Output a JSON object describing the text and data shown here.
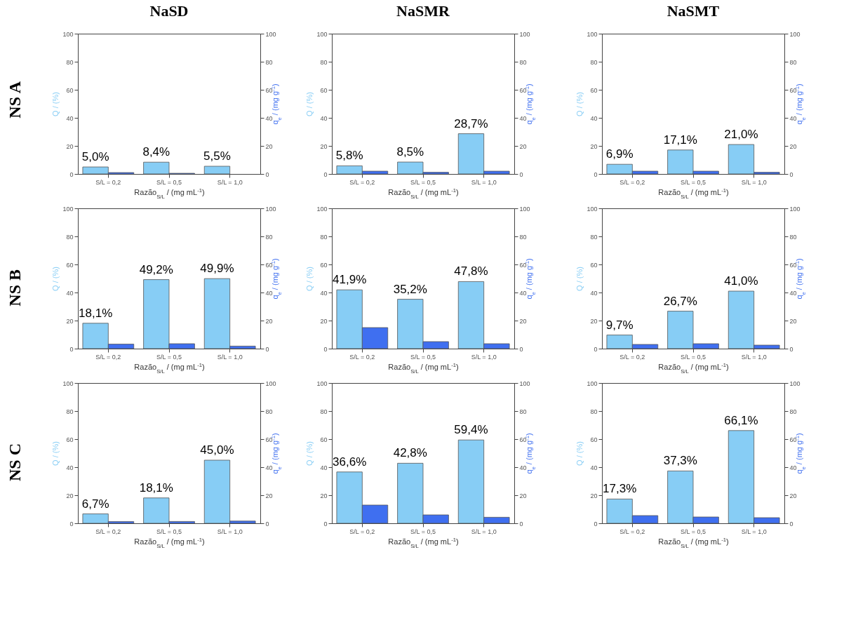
{
  "chart_data": [
    {
      "type": "bar",
      "title": "NaSD",
      "annotations": [
        "NS A"
      ],
      "categories": [
        "S/L = 0,2",
        "S/L = 0,5",
        "S/L = 1,0"
      ],
      "xlabel": "Razão$_{S/L}$ / (mg mL$^{-1}$)",
      "ylabel": "Q / (%)",
      "y2label": "q$_{e}$ / (mg g$^{-1}$)",
      "ylim": [
        0,
        100
      ],
      "yticks": [
        0,
        20,
        40,
        60,
        80,
        100
      ],
      "y2lim": [
        0,
        100
      ],
      "y2ticks": [
        0,
        20,
        40,
        60,
        80,
        100
      ],
      "series": [
        {
          "color": "#87cdf5",
          "values": [
            5.0,
            8.4,
            5.5
          ],
          "value_labels": [
            "5,0%",
            "8,4%",
            "5,5%"
          ]
        },
        {
          "color": "#3f6ff0",
          "axis": "y2",
          "values": [
            1.0,
            0.5,
            null
          ]
        }
      ]
    },
    {
      "type": "bar",
      "title": "NaSMR",
      "categories": [
        "S/L = 0,2",
        "S/L = 0,5",
        "S/L = 1,0"
      ],
      "xlabel": "Razão$_{S/L}$ / (mg mL$^{-1}$)",
      "ylabel": "Q / (%)",
      "y2label": "q$_{e}$ / (mg g$^{-1}$)",
      "ylim": [
        0,
        100
      ],
      "yticks": [
        0,
        20,
        40,
        60,
        80,
        100
      ],
      "y2lim": [
        0,
        100
      ],
      "y2ticks": [
        0,
        20,
        40,
        60,
        80,
        100
      ],
      "series": [
        {
          "color": "#87cdf5",
          "values": [
            5.8,
            8.5,
            28.7
          ],
          "value_labels": [
            "5,8%",
            "8,5%",
            "28,7%"
          ]
        },
        {
          "color": "#3f6ff0",
          "axis": "y2",
          "values": [
            2.0,
            1.2,
            2.0
          ]
        }
      ]
    },
    {
      "type": "bar",
      "title": "NaSMT",
      "categories": [
        "S/L = 0,2",
        "S/L = 0,5",
        "S/L = 1,0"
      ],
      "xlabel": "Razão$_{S/L}$ / (mg mL$^{-1}$)",
      "ylabel": "Q / (%)",
      "y2label": "q$_{e}$ / (mg g$^{-1}$)",
      "ylim": [
        0,
        100
      ],
      "yticks": [
        0,
        20,
        40,
        60,
        80,
        100
      ],
      "y2lim": [
        0,
        100
      ],
      "y2ticks": [
        0,
        20,
        40,
        60,
        80,
        100
      ],
      "series": [
        {
          "color": "#87cdf5",
          "values": [
            6.9,
            17.1,
            21.0
          ],
          "value_labels": [
            "6,9%",
            "17,1%",
            "21,0%"
          ]
        },
        {
          "color": "#3f6ff0",
          "axis": "y2",
          "values": [
            2.0,
            2.0,
            1.2
          ]
        }
      ]
    },
    {
      "type": "bar",
      "annotations": [
        "NS B"
      ],
      "categories": [
        "S/L = 0,2",
        "S/L = 0,5",
        "S/L = 1,0"
      ],
      "xlabel": "Razão$_{S/L}$ / (mg mL$^{-1}$)",
      "ylabel": "Q / (%)",
      "y2label": "q$_{e}$ / (mg g$^{-1}$)",
      "ylim": [
        0,
        100
      ],
      "yticks": [
        0,
        20,
        40,
        60,
        80,
        100
      ],
      "y2lim": [
        0,
        100
      ],
      "y2ticks": [
        0,
        20,
        40,
        60,
        80,
        100
      ],
      "series": [
        {
          "color": "#87cdf5",
          "values": [
            18.1,
            49.2,
            49.9
          ],
          "value_labels": [
            "18,1%",
            "49,2%",
            "49,9%"
          ]
        },
        {
          "color": "#3f6ff0",
          "axis": "y2",
          "values": [
            3.2,
            3.5,
            1.8
          ]
        }
      ]
    },
    {
      "type": "bar",
      "categories": [
        "S/L = 0,2",
        "S/L = 0,5",
        "S/L = 1,0"
      ],
      "xlabel": "Razão$_{S/L}$ / (mg mL$^{-1}$)",
      "ylabel": "Q / (%)",
      "y2label": "q$_{e}$ / (mg g$^{-1}$)",
      "ylim": [
        0,
        100
      ],
      "yticks": [
        0,
        20,
        40,
        60,
        80,
        100
      ],
      "y2lim": [
        0,
        100
      ],
      "y2ticks": [
        0,
        20,
        40,
        60,
        80,
        100
      ],
      "series": [
        {
          "color": "#87cdf5",
          "values": [
            41.9,
            35.2,
            47.8
          ],
          "value_labels": [
            "41,9%",
            "35,2%",
            "47,8%"
          ]
        },
        {
          "color": "#3f6ff0",
          "axis": "y2",
          "values": [
            15,
            5,
            3.5
          ]
        }
      ]
    },
    {
      "type": "bar",
      "categories": [
        "S/L = 0,2",
        "S/L = 0,5",
        "S/L = 1,0"
      ],
      "xlabel": "Razão$_{S/L}$ / (mg mL$^{-1}$)",
      "ylabel": "Q / (%)",
      "y2label": "q$_{e}$ / (mg g$^{-1}$)",
      "ylim": [
        0,
        100
      ],
      "yticks": [
        0,
        20,
        40,
        60,
        80,
        100
      ],
      "y2lim": [
        0,
        100
      ],
      "y2ticks": [
        0,
        20,
        40,
        60,
        80,
        100
      ],
      "series": [
        {
          "color": "#87cdf5",
          "values": [
            9.7,
            26.7,
            41.0
          ],
          "value_labels": [
            "9,7%",
            "26,7%",
            "41,0%"
          ]
        },
        {
          "color": "#3f6ff0",
          "axis": "y2",
          "values": [
            3.0,
            3.5,
            2.5
          ]
        }
      ]
    },
    {
      "type": "bar",
      "annotations": [
        "NS C"
      ],
      "categories": [
        "S/L = 0,2",
        "S/L = 0,5",
        "S/L = 1,0"
      ],
      "xlabel": "Razão$_{S/L}$ / (mg mL$^{-1}$)",
      "ylabel": "Q / (%)",
      "y2label": "q$_{e}$ / (mg g$^{-1}$)",
      "ylim": [
        0,
        100
      ],
      "yticks": [
        0,
        20,
        40,
        60,
        80,
        100
      ],
      "y2lim": [
        0,
        100
      ],
      "y2ticks": [
        0,
        20,
        40,
        60,
        80,
        100
      ],
      "series": [
        {
          "color": "#87cdf5",
          "values": [
            6.7,
            18.1,
            45.0
          ],
          "value_labels": [
            "6,7%",
            "18,1%",
            "45,0%"
          ]
        },
        {
          "color": "#3f6ff0",
          "axis": "y2",
          "values": [
            1.2,
            1.3,
            1.6
          ]
        }
      ]
    },
    {
      "type": "bar",
      "categories": [
        "S/L = 0,2",
        "S/L = 0,5",
        "S/L = 1,0"
      ],
      "xlabel": "Razão$_{S/L}$ / (mg mL$^{-1}$)",
      "ylabel": "Q / (%)",
      "y2label": "q$_{e}$ / (mg g$^{-1}$)",
      "ylim": [
        0,
        100
      ],
      "yticks": [
        0,
        20,
        40,
        60,
        80,
        100
      ],
      "y2lim": [
        0,
        100
      ],
      "y2ticks": [
        0,
        20,
        40,
        60,
        80,
        100
      ],
      "series": [
        {
          "color": "#87cdf5",
          "values": [
            36.6,
            42.8,
            59.4
          ],
          "value_labels": [
            "36,6%",
            "42,8%",
            "59,4%"
          ]
        },
        {
          "color": "#3f6ff0",
          "axis": "y2",
          "values": [
            13,
            6,
            4.3
          ]
        }
      ]
    },
    {
      "type": "bar",
      "categories": [
        "S/L = 0,2",
        "S/L = 0,5",
        "S/L = 1,0"
      ],
      "xlabel": "Razão$_{S/L}$ / (mg mL$^{-1}$)",
      "ylabel": "Q / (%)",
      "y2label": "q$_{e}$ / (mg g$^{-1}$)",
      "ylim": [
        0,
        100
      ],
      "yticks": [
        0,
        20,
        40,
        60,
        80,
        100
      ],
      "y2lim": [
        0,
        100
      ],
      "y2ticks": [
        0,
        20,
        40,
        60,
        80,
        100
      ],
      "series": [
        {
          "color": "#87cdf5",
          "values": [
            17.3,
            37.3,
            66.1
          ],
          "value_labels": [
            "17,3%",
            "37,3%",
            "66,1%"
          ]
        },
        {
          "color": "#3f6ff0",
          "axis": "y2",
          "values": [
            5.5,
            4.5,
            4.0
          ]
        }
      ]
    }
  ]
}
